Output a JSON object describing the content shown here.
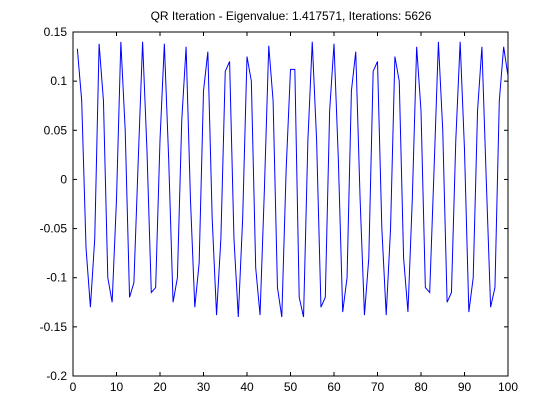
{
  "chart_data": {
    "type": "line",
    "title": "QR Iteration - Eigenvalue: 1.417571, Iterations: 5626",
    "xlabel": "",
    "ylabel": "",
    "xlim": [
      0,
      100
    ],
    "ylim": [
      -0.2,
      0.15
    ],
    "xticks": [
      0,
      10,
      20,
      30,
      40,
      50,
      60,
      70,
      80,
      90,
      100
    ],
    "xtick_labels": [
      "0",
      "10",
      "20",
      "30",
      "40",
      "50",
      "60",
      "70",
      "80",
      "90",
      "100"
    ],
    "yticks": [
      -0.2,
      -0.15,
      -0.1,
      -0.05,
      0,
      0.05,
      0.1,
      0.15
    ],
    "ytick_labels": [
      "-0.2",
      "-0.15",
      "-0.1",
      "-0.05",
      "0",
      "0.05",
      "0.1",
      "0.15"
    ],
    "grid": false,
    "line_color": "#0000ff",
    "series": [
      {
        "x": [
          1,
          2,
          3,
          4,
          5,
          6,
          7,
          8,
          9,
          10,
          11,
          12,
          13,
          14,
          15,
          16,
          17,
          18,
          19,
          20,
          21,
          22,
          23,
          24,
          25,
          26,
          27,
          28,
          29,
          30,
          31,
          32,
          33,
          34,
          35,
          36,
          37,
          38,
          39,
          40,
          41,
          42,
          43,
          44,
          45,
          46,
          47,
          48,
          49,
          50,
          51,
          52,
          53,
          54,
          55,
          56,
          57,
          58,
          59,
          60,
          61,
          62,
          63,
          64,
          65,
          66,
          67,
          68,
          69,
          70,
          71,
          72,
          73,
          74,
          75,
          76,
          77,
          78,
          79,
          80,
          81,
          82,
          83,
          84,
          85,
          86,
          87,
          88,
          89,
          90,
          91,
          92,
          93,
          94,
          95,
          96,
          97,
          98,
          99,
          100
        ],
        "y": [
          0.133,
          0.08,
          -0.07,
          -0.13,
          -0.06,
          0.138,
          0.08,
          -0.1,
          -0.125,
          -0.02,
          0.14,
          0.05,
          -0.12,
          -0.105,
          0.02,
          0.14,
          0.03,
          -0.115,
          -0.11,
          0.04,
          0.138,
          0.02,
          -0.125,
          -0.1,
          0.06,
          0.135,
          -0.02,
          -0.13,
          -0.085,
          0.09,
          0.13,
          -0.04,
          -0.138,
          -0.06,
          0.11,
          0.12,
          -0.06,
          -0.14,
          -0.04,
          0.125,
          0.1,
          -0.09,
          -0.138,
          -0.01,
          0.136,
          0.08,
          -0.11,
          -0.14,
          0.01,
          0.112,
          0.112,
          -0.12,
          -0.14,
          0.04,
          0.14,
          0.04,
          -0.13,
          -0.12,
          0.07,
          0.138,
          0.02,
          -0.135,
          -0.1,
          0.09,
          0.13,
          -0.02,
          -0.138,
          -0.08,
          0.11,
          0.12,
          -0.05,
          -0.138,
          -0.05,
          0.125,
          0.1,
          -0.08,
          -0.135,
          -0.02,
          0.135,
          0.07,
          -0.11,
          -0.115,
          0.01,
          0.14,
          0.05,
          -0.125,
          -0.115,
          0.04,
          0.14,
          0.03,
          -0.135,
          -0.1,
          0.07,
          0.135,
          0.0,
          -0.13,
          -0.11,
          0.08,
          0.135,
          0.105
        ]
      }
    ]
  }
}
